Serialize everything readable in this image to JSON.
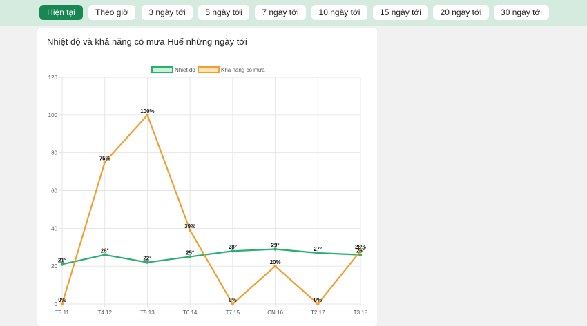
{
  "tabs": [
    {
      "label": "Hiện tại",
      "active": true
    },
    {
      "label": "Theo giờ",
      "active": false
    },
    {
      "label": "3 ngày tới",
      "active": false
    },
    {
      "label": "5 ngày tới",
      "active": false
    },
    {
      "label": "7 ngày tới",
      "active": false
    },
    {
      "label": "10 ngày tới",
      "active": false
    },
    {
      "label": "15 ngày tới",
      "active": false
    },
    {
      "label": "20 ngày tới",
      "active": false
    },
    {
      "label": "30 ngày tới",
      "active": false
    }
  ],
  "card": {
    "title": "Nhiệt độ và khả năng có mưa Huế những ngày tới"
  },
  "colors": {
    "tab_active": "#198754",
    "tabbar_bg": "#d6ebdf",
    "temperature": "#28b06d",
    "temperature_fill": "#c9f0d8",
    "rain": "#f0a030",
    "rain_fill": "#fde3b8",
    "grid": "#e6e6e6"
  },
  "chart_data": {
    "type": "line",
    "categories": [
      "T3 11",
      "T4 12",
      "T5 13",
      "T6 14",
      "T7 15",
      "CN 16",
      "T2 17",
      "T3 18"
    ],
    "series": [
      {
        "name": "Nhiệt độ",
        "values": [
          21,
          26,
          22,
          25,
          28,
          29,
          27,
          26
        ],
        "labels": [
          "21°",
          "26°",
          "22°",
          "25°",
          "28°",
          "29°",
          "27°",
          "26°"
        ]
      },
      {
        "name": "Khả năng có mưa",
        "values": [
          0,
          75,
          100,
          39,
          0,
          20,
          0,
          28
        ],
        "labels": [
          "0%",
          "75%",
          "100%",
          "39%",
          "0%",
          "20%",
          "0%",
          "28%"
        ]
      }
    ],
    "ylim": [
      0,
      120
    ],
    "yticks": [
      0,
      20,
      40,
      60,
      80,
      100,
      120
    ],
    "grid": true,
    "legend": "top-center"
  }
}
